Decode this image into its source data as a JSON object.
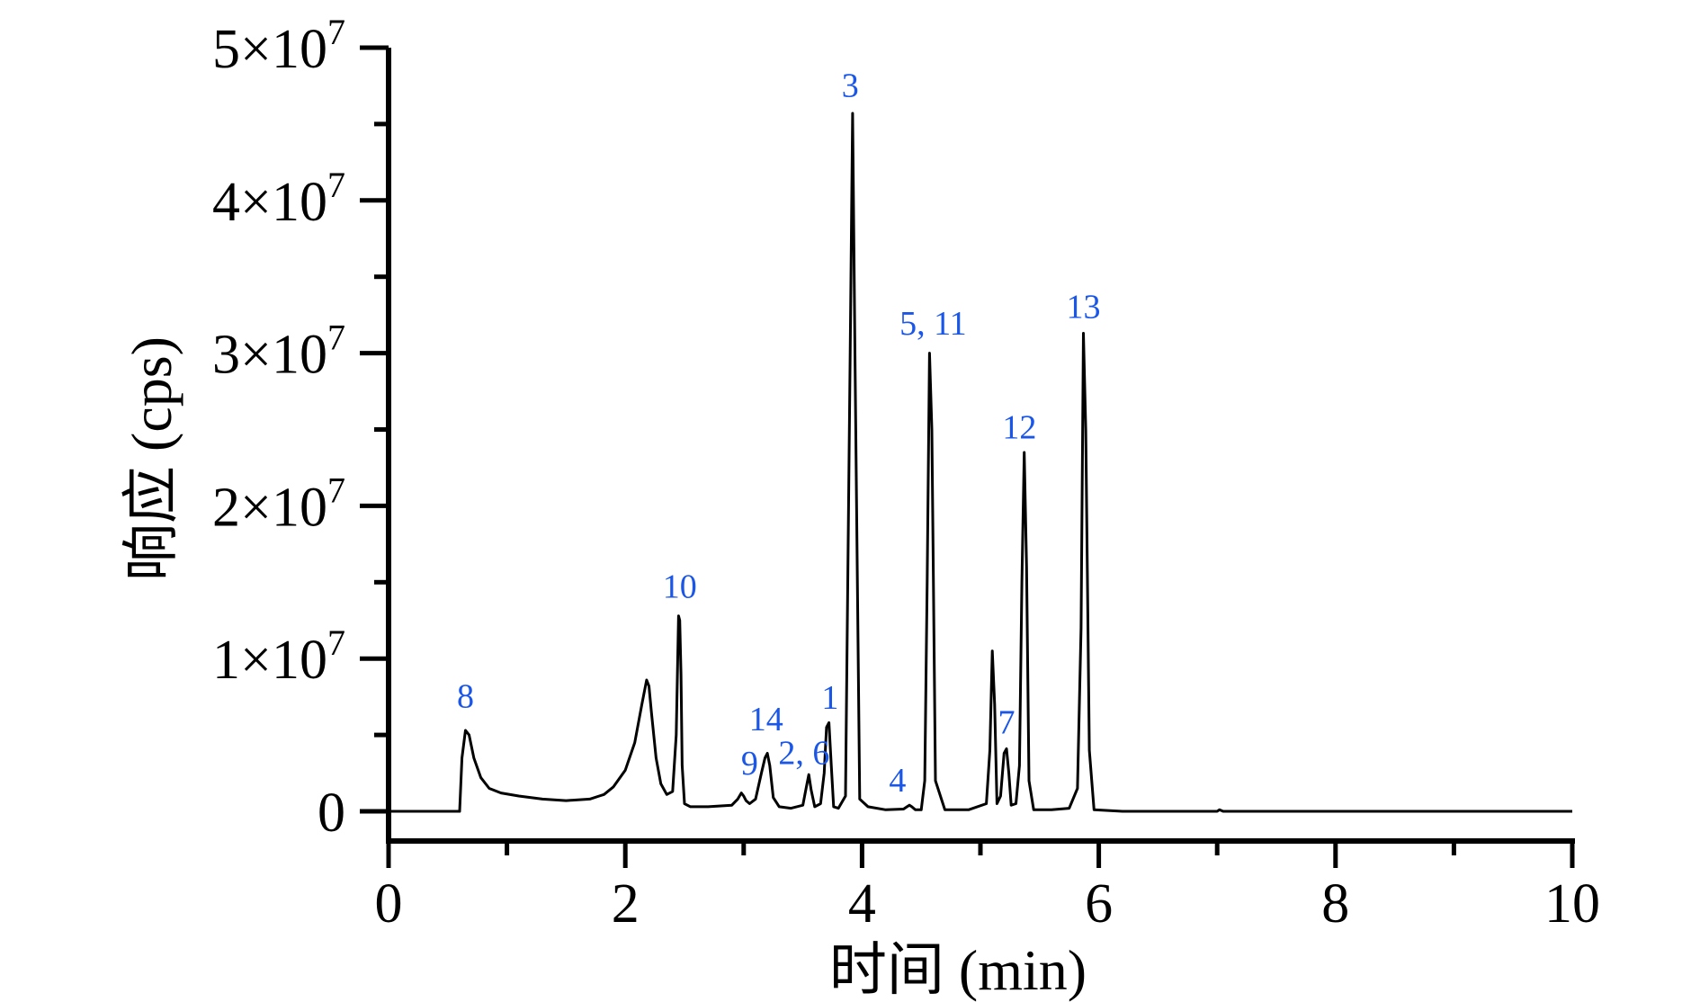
{
  "chart_data": {
    "type": "line",
    "title": "",
    "xlabel": "时间 (min)",
    "ylabel": "响应 (cps)",
    "xlim": [
      0,
      10
    ],
    "ylim": [
      0,
      50000000
    ],
    "grid": false,
    "legend": "none",
    "line_color": "#000000",
    "label_color": "#1a56e8",
    "x_ticks": [
      0,
      2,
      4,
      6,
      8,
      10
    ],
    "x_tick_labels": [
      "0",
      "2",
      "4",
      "6",
      "8",
      "10"
    ],
    "y_ticks": [
      0,
      10000000,
      20000000,
      30000000,
      40000000,
      50000000
    ],
    "y_tick_labels": [
      {
        "mantissa": "0",
        "times": "",
        "base": "",
        "exp": ""
      },
      {
        "mantissa": "1",
        "times": "×",
        "base": "10",
        "exp": "7"
      },
      {
        "mantissa": "2",
        "times": "×",
        "base": "10",
        "exp": "7"
      },
      {
        "mantissa": "3",
        "times": "×",
        "base": "10",
        "exp": "7"
      },
      {
        "mantissa": "4",
        "times": "×",
        "base": "10",
        "exp": "7"
      },
      {
        "mantissa": "5",
        "times": "×",
        "base": "10",
        "exp": "7"
      }
    ],
    "series": [
      {
        "x": [
          0,
          0.6,
          0.62,
          0.65,
          0.68,
          0.72,
          0.78,
          0.85,
          0.95,
          1.1,
          1.3,
          1.5,
          1.7,
          1.78,
          1.82,
          1.9,
          2.0,
          2.08,
          2.14,
          2.18,
          2.2,
          2.22,
          2.26,
          2.3,
          2.35,
          2.4,
          2.43,
          2.45,
          2.46,
          2.47,
          2.48,
          2.5,
          2.55,
          2.7,
          2.9,
          2.95,
          2.98,
          3.0,
          3.02,
          3.05,
          3.1,
          3.15,
          3.18,
          3.2,
          3.22,
          3.25,
          3.3,
          3.4,
          3.5,
          3.53,
          3.55,
          3.57,
          3.6,
          3.65,
          3.68,
          3.7,
          3.72,
          3.74,
          3.76,
          3.8,
          3.86,
          3.9,
          3.92,
          3.94,
          3.98,
          4.05,
          4.2,
          4.35,
          4.38,
          4.4,
          4.42,
          4.45,
          4.5,
          4.53,
          4.55,
          4.57,
          4.59,
          4.62,
          4.7,
          4.9,
          5.05,
          5.08,
          5.1,
          5.12,
          5.14,
          5.17,
          5.2,
          5.22,
          5.24,
          5.26,
          5.3,
          5.33,
          5.35,
          5.37,
          5.39,
          5.41,
          5.45,
          5.6,
          5.75,
          5.82,
          5.85,
          5.87,
          5.89,
          5.92,
          5.96,
          6.2,
          6.6,
          7.0,
          7.02,
          7.05,
          8.0,
          9.0,
          10.0
        ],
        "y": [
          0,
          0,
          3500000,
          5300000,
          5000000,
          3500000,
          2200000,
          1500000,
          1200000,
          1000000,
          800000,
          700000,
          800000,
          1000000,
          1100000,
          1600000,
          2700000,
          4500000,
          7000000,
          8600000,
          8200000,
          6500000,
          3500000,
          1800000,
          1100000,
          1300000,
          5000000,
          12800000,
          12500000,
          9000000,
          3000000,
          500000,
          300000,
          300000,
          400000,
          800000,
          1200000,
          1000000,
          700000,
          500000,
          800000,
          2500000,
          3500000,
          3800000,
          3000000,
          900000,
          300000,
          200000,
          400000,
          1600000,
          2400000,
          1400000,
          300000,
          500000,
          2500000,
          5500000,
          5800000,
          3000000,
          300000,
          200000,
          1000000,
          30000000,
          45700000,
          30000000,
          800000,
          300000,
          100000,
          150000,
          300000,
          400000,
          300000,
          100000,
          100000,
          2000000,
          15000000,
          30000000,
          25000000,
          2000000,
          100000,
          100000,
          500000,
          4000000,
          10500000,
          7000000,
          500000,
          1000000,
          3800000,
          4100000,
          2500000,
          400000,
          500000,
          3000000,
          15000000,
          23500000,
          16000000,
          2000000,
          100000,
          100000,
          200000,
          1500000,
          12000000,
          31300000,
          25000000,
          4000000,
          100000,
          0,
          0,
          0,
          100000,
          0,
          0,
          0,
          0
        ]
      }
    ],
    "peak_labels": [
      {
        "text": "8",
        "x": 0.65,
        "y": 6800000
      },
      {
        "text": "10",
        "x": 2.46,
        "y": 14000000
      },
      {
        "text": "9",
        "x": 3.05,
        "y": 2400000
      },
      {
        "text": "14",
        "x": 3.19,
        "y": 5300000
      },
      {
        "text": "2, 6",
        "x": 3.51,
        "y": 3100000
      },
      {
        "text": "1",
        "x": 3.73,
        "y": 6700000
      },
      {
        "text": "3",
        "x": 3.9,
        "y": 46800000
      },
      {
        "text": "4",
        "x": 4.3,
        "y": 1300000
      },
      {
        "text": "5, 11",
        "x": 4.6,
        "y": 31200000
      },
      {
        "text": "7",
        "x": 5.22,
        "y": 5100000
      },
      {
        "text": "12",
        "x": 5.33,
        "y": 24400000
      },
      {
        "text": "13",
        "x": 5.87,
        "y": 32300000
      }
    ]
  }
}
